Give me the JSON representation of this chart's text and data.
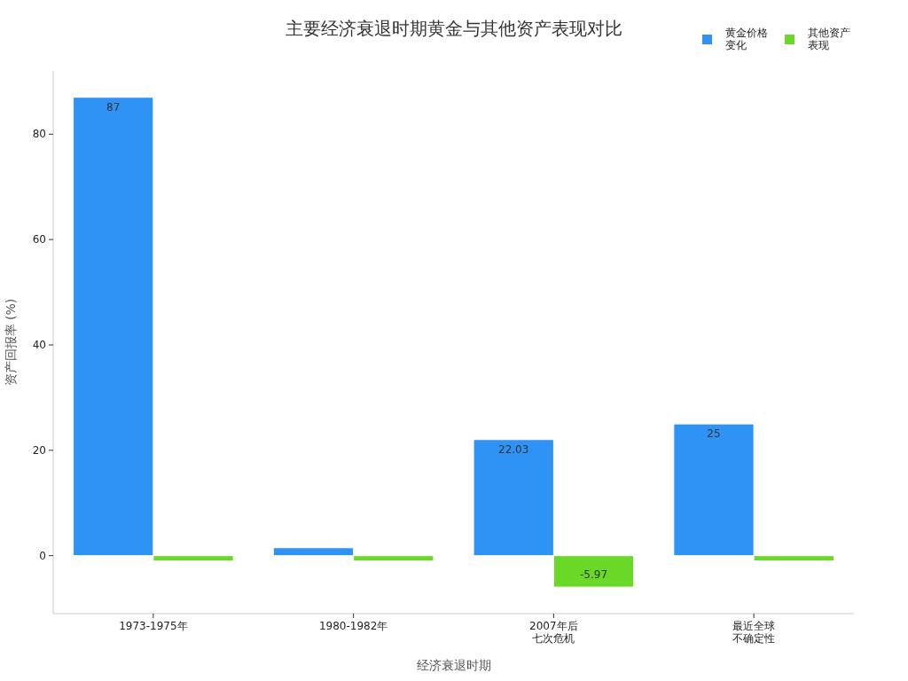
{
  "chart_data": {
    "type": "bar",
    "title": "主要经济衰退时期黄金与其他资产表现对比",
    "xlabel": "经济衰退时期",
    "ylabel": "资产回报率 (%)",
    "categories": [
      "1973-1975年",
      "1980-1982年",
      "2007年后七次危机",
      "最近全球不确定性"
    ],
    "series": [
      {
        "name": "黄金价格变化",
        "color": "#2e93f5",
        "values": [
          87,
          1.5,
          22.03,
          25
        ],
        "value_labels": [
          "87",
          null,
          "22.03",
          "25"
        ]
      },
      {
        "name": "其他资产表现",
        "color": "#6ad827",
        "values": [
          -1,
          -1,
          -5.97,
          -1
        ],
        "value_labels": [
          null,
          null,
          "-5.97",
          null
        ]
      }
    ],
    "ylim": [
      -11,
      92
    ],
    "yticks": [
      0,
      20,
      40,
      60,
      80
    ],
    "grid": false,
    "legend": "top right"
  }
}
